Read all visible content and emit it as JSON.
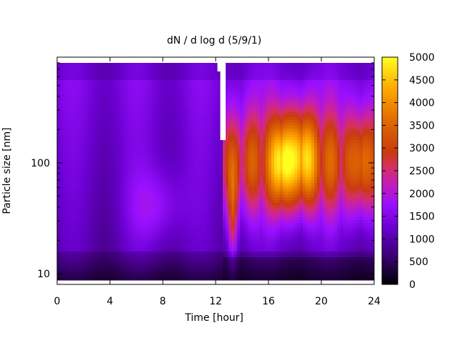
{
  "chart_data": {
    "type": "heatmap",
    "title": "dN / d log d (5/9/1)",
    "xlabel": "Time [hour]",
    "ylabel": "Particle size [nm]",
    "xlim": [
      0,
      24
    ],
    "ylim": [
      8,
      900
    ],
    "yscale": "log",
    "x_ticks": [
      "0",
      "4",
      "8",
      "12",
      "16",
      "20",
      "24"
    ],
    "y_ticks": [
      "10",
      "100"
    ],
    "colorbar": {
      "range": [
        0,
        5000
      ],
      "ticks": [
        "0",
        "500",
        "1000",
        "1500",
        "2000",
        "2500",
        "3000",
        "3500",
        "4000",
        "4500",
        "5000"
      ],
      "colors": [
        "#000000",
        "#4b0096",
        "#8a00ff",
        "#d43b5a",
        "#ff9a00",
        "#ffff00"
      ]
    },
    "grid": false,
    "legend": "none",
    "events": [
      {
        "name": "background",
        "t_range": [
          0,
          12.2
        ],
        "value": 1300
      },
      {
        "name": "peak",
        "t": 17,
        "d": 100,
        "value": 4300
      },
      {
        "name": "peak",
        "t": 18.5,
        "d": 110,
        "value": 4200
      },
      {
        "name": "peak",
        "t": 23,
        "d": 100,
        "value": 3200
      }
    ]
  }
}
